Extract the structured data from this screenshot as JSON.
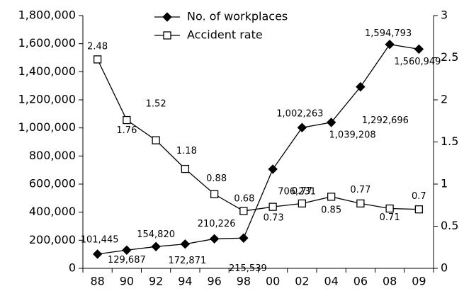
{
  "chart_data": {
    "type": "line",
    "categories": [
      "88",
      "90",
      "92",
      "94",
      "96",
      "98",
      "00",
      "02",
      "04",
      "06",
      "08",
      "09"
    ],
    "series": [
      {
        "name": "No. of workplaces",
        "color": "#000000",
        "marker": "diamond",
        "values": [
          101445,
          129687,
          154820,
          172871,
          210226,
          215539,
          706231,
          1002263,
          1039208,
          1292696,
          1594793,
          1560949
        ],
        "value_labels": [
          "101,445",
          "129,687",
          "154,820",
          "172,871",
          "210,226",
          "215,539",
          "706,231",
          "1,002,263",
          "1,039,208",
          "1,292,696",
          "1,594,793",
          "1,560,949"
        ]
      },
      {
        "name": "Accident rate",
        "color": "#000000",
        "marker": "square",
        "axis": "y2",
        "values": [
          2.48,
          1.76,
          1.52,
          1.18,
          0.88,
          0.68,
          0.73,
          0.77,
          0.85,
          0.77,
          0.71,
          0.7
        ]
      }
    ],
    "ylim": [
      0,
      1800000
    ],
    "yticks": [
      0,
      {
        "value": 200000,
        "label": "200,000"
      },
      {
        "value": 400000,
        "label": "400,000"
      },
      {
        "value": 600000,
        "label": "600,000"
      },
      {
        "value": 800000,
        "label": "800,000"
      },
      {
        "value": 1000000,
        "label": "1,000,000"
      },
      {
        "value": 1200000,
        "label": "1,200,000"
      },
      {
        "value": 1400000,
        "label": "1,400,000"
      },
      {
        "value": 1600000,
        "label": "1,600,000"
      },
      {
        "value": 1800000,
        "label": "1,800,000"
      }
    ],
    "y2lim": [
      0,
      3
    ],
    "y2ticks": [
      0,
      0.5,
      1,
      1.5,
      2,
      2.5,
      3
    ],
    "grid": false,
    "legend": "top"
  }
}
